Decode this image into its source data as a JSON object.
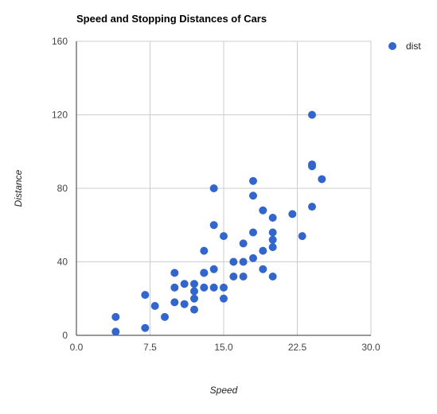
{
  "chart_data": {
    "type": "scatter",
    "title": "Speed and Stopping Distances of Cars",
    "xlabel": "Speed",
    "ylabel": "Distance",
    "xlim": [
      0,
      30
    ],
    "ylim": [
      0,
      160
    ],
    "x_ticks": [
      "0.0",
      "7.5",
      "15.0",
      "22.5",
      "30.0"
    ],
    "y_ticks": [
      "0",
      "40",
      "80",
      "120",
      "160"
    ],
    "grid": true,
    "legend_position": "right",
    "series": [
      {
        "name": "dist",
        "color": "#3366cc",
        "points": [
          [
            4,
            2
          ],
          [
            4,
            10
          ],
          [
            7,
            4
          ],
          [
            7,
            22
          ],
          [
            8,
            16
          ],
          [
            9,
            10
          ],
          [
            10,
            18
          ],
          [
            10,
            26
          ],
          [
            10,
            34
          ],
          [
            11,
            17
          ],
          [
            11,
            28
          ],
          [
            12,
            14
          ],
          [
            12,
            20
          ],
          [
            12,
            24
          ],
          [
            12,
            28
          ],
          [
            13,
            26
          ],
          [
            13,
            34
          ],
          [
            13,
            34
          ],
          [
            13,
            46
          ],
          [
            14,
            26
          ],
          [
            14,
            36
          ],
          [
            14,
            60
          ],
          [
            14,
            80
          ],
          [
            15,
            20
          ],
          [
            15,
            26
          ],
          [
            15,
            54
          ],
          [
            16,
            32
          ],
          [
            16,
            40
          ],
          [
            17,
            32
          ],
          [
            17,
            40
          ],
          [
            17,
            50
          ],
          [
            18,
            42
          ],
          [
            18,
            56
          ],
          [
            18,
            76
          ],
          [
            18,
            84
          ],
          [
            19,
            36
          ],
          [
            19,
            46
          ],
          [
            19,
            68
          ],
          [
            20,
            32
          ],
          [
            20,
            48
          ],
          [
            20,
            52
          ],
          [
            20,
            56
          ],
          [
            20,
            64
          ],
          [
            22,
            66
          ],
          [
            23,
            54
          ],
          [
            24,
            70
          ],
          [
            24,
            92
          ],
          [
            24,
            93
          ],
          [
            24,
            120
          ],
          [
            25,
            85
          ]
        ]
      }
    ]
  }
}
